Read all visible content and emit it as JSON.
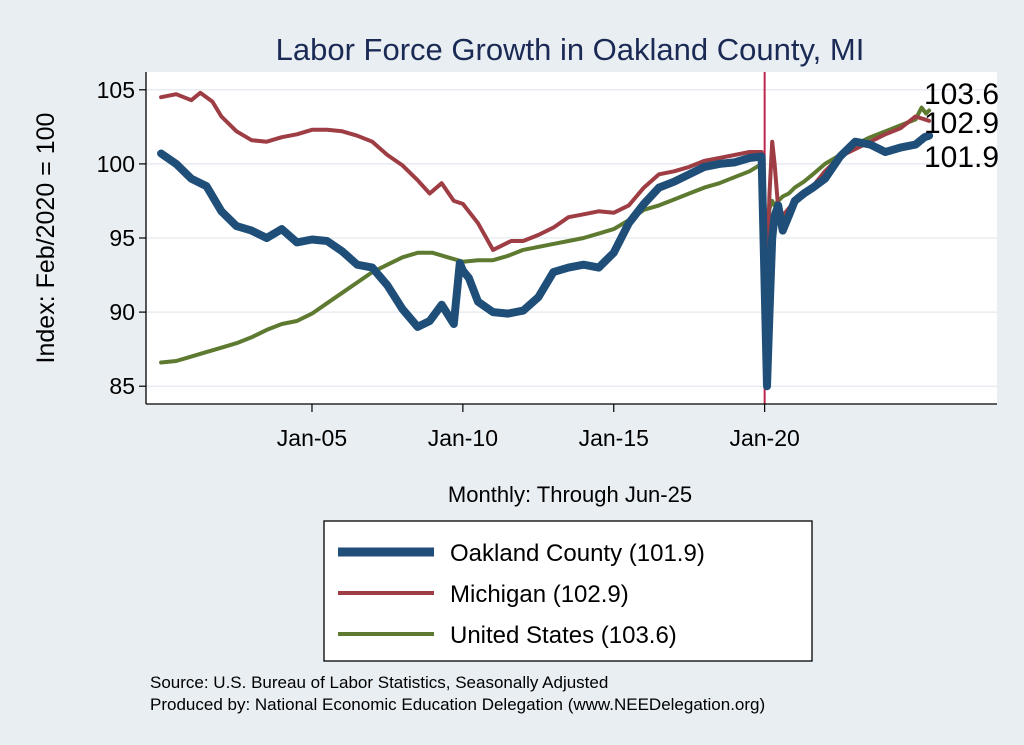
{
  "chart_data": {
    "type": "line",
    "title": "Labor Force Growth in Oakland  County, MI",
    "ylabel": "Index: Feb/2020 = 100",
    "xlabel": "Monthly: Through Jun-25",
    "x_ticks": [
      "Jan-05",
      "Jan-10",
      "Jan-15",
      "Jan-20"
    ],
    "x_tick_values": [
      2005.0,
      2010.0,
      2015.0,
      2020.0
    ],
    "y_ticks": [
      "85",
      "90",
      "95",
      "100",
      "105"
    ],
    "y_tick_values": [
      85,
      90,
      95,
      100,
      105
    ],
    "xlim": [
      1999.5,
      2027.7
    ],
    "ylim": [
      83.8,
      106.2
    ],
    "vline_x": 2020.0,
    "end_labels": [
      "103.6",
      "102.9",
      "101.9"
    ],
    "series": [
      {
        "name": "Oakland County",
        "legend": "Oakland  County (101.9)",
        "color": "#1f4e79",
        "x": [
          2000.0,
          2000.5,
          2001.0,
          2001.5,
          2002.0,
          2002.5,
          2003.0,
          2003.5,
          2004.0,
          2004.5,
          2005.0,
          2005.5,
          2006.0,
          2006.5,
          2007.0,
          2007.5,
          2008.0,
          2008.5,
          2008.9,
          2009.3,
          2009.7,
          2009.9,
          2010.0,
          2010.2,
          2010.5,
          2011.0,
          2011.5,
          2012.0,
          2012.5,
          2013.0,
          2013.5,
          2014.0,
          2014.5,
          2015.0,
          2015.5,
          2016.0,
          2016.5,
          2017.0,
          2017.5,
          2018.0,
          2018.5,
          2019.0,
          2019.5,
          2019.9,
          2020.08,
          2020.16,
          2020.25,
          2020.33,
          2020.45,
          2020.6,
          2020.8,
          2021.0,
          2021.3,
          2021.6,
          2022.0,
          2022.5,
          2023.0,
          2023.5,
          2024.0,
          2024.5,
          2025.0,
          2025.3,
          2025.45
        ],
        "y": [
          100.7,
          100.0,
          99.0,
          98.5,
          96.8,
          95.8,
          95.5,
          95.0,
          95.6,
          94.7,
          94.9,
          94.8,
          94.1,
          93.2,
          93.0,
          91.8,
          90.2,
          89.0,
          89.4,
          90.5,
          89.2,
          93.3,
          92.8,
          92.3,
          90.7,
          90.0,
          89.9,
          90.1,
          91.0,
          92.7,
          93.0,
          93.2,
          93.0,
          94.0,
          96.0,
          97.3,
          98.4,
          98.8,
          99.3,
          99.8,
          100.0,
          100.1,
          100.4,
          100.5,
          85.0,
          90.0,
          95.0,
          96.5,
          97.2,
          95.5,
          96.5,
          97.5,
          98.0,
          98.4,
          99.0,
          100.5,
          101.5,
          101.3,
          100.8,
          101.1,
          101.3,
          101.8,
          101.9
        ]
      },
      {
        "name": "Michigan",
        "legend": "Michigan (102.9)",
        "color": "#9e3d44",
        "x": [
          2000.0,
          2000.5,
          2001.0,
          2001.3,
          2001.7,
          2002.0,
          2002.5,
          2003.0,
          2003.5,
          2004.0,
          2004.5,
          2005.0,
          2005.5,
          2006.0,
          2006.5,
          2007.0,
          2007.5,
          2008.0,
          2008.5,
          2008.9,
          2009.3,
          2009.7,
          2010.0,
          2010.5,
          2011.0,
          2011.2,
          2011.6,
          2012.0,
          2012.5,
          2013.0,
          2013.5,
          2014.0,
          2014.5,
          2015.0,
          2015.5,
          2016.0,
          2016.5,
          2017.0,
          2017.5,
          2018.0,
          2018.5,
          2019.0,
          2019.5,
          2019.9,
          2020.08,
          2020.16,
          2020.25,
          2020.33,
          2020.45,
          2020.6,
          2020.8,
          2021.0,
          2021.3,
          2021.6,
          2022.0,
          2022.5,
          2023.0,
          2023.5,
          2024.0,
          2024.5,
          2025.0,
          2025.3,
          2025.45
        ],
        "y": [
          104.5,
          104.7,
          104.3,
          104.8,
          104.2,
          103.2,
          102.2,
          101.6,
          101.5,
          101.8,
          102.0,
          102.3,
          102.3,
          102.2,
          101.9,
          101.5,
          100.6,
          99.9,
          98.9,
          98.0,
          98.7,
          97.5,
          97.3,
          96.0,
          94.2,
          94.4,
          94.8,
          94.8,
          95.2,
          95.7,
          96.4,
          96.6,
          96.8,
          96.7,
          97.2,
          98.4,
          99.3,
          99.5,
          99.8,
          100.2,
          100.4,
          100.6,
          100.8,
          100.8,
          92.5,
          98.0,
          101.5,
          100.0,
          97.0,
          96.5,
          97.0,
          97.5,
          98.0,
          98.5,
          99.5,
          100.5,
          101.0,
          101.5,
          102.0,
          102.4,
          103.2,
          103.0,
          102.9
        ]
      },
      {
        "name": "United States",
        "legend": "United States (103.6)",
        "color": "#5e7a30",
        "x": [
          2000.0,
          2000.5,
          2001.0,
          2001.5,
          2002.0,
          2002.5,
          2003.0,
          2003.5,
          2004.0,
          2004.5,
          2005.0,
          2005.5,
          2006.0,
          2006.5,
          2007.0,
          2007.5,
          2008.0,
          2008.5,
          2009.0,
          2009.5,
          2010.0,
          2010.5,
          2011.0,
          2011.5,
          2012.0,
          2012.5,
          2013.0,
          2013.5,
          2014.0,
          2014.5,
          2015.0,
          2015.5,
          2016.0,
          2016.5,
          2017.0,
          2017.5,
          2018.0,
          2018.5,
          2019.0,
          2019.5,
          2019.9,
          2020.08,
          2020.16,
          2020.25,
          2020.33,
          2020.45,
          2020.6,
          2020.8,
          2021.0,
          2021.3,
          2021.6,
          2022.0,
          2022.5,
          2023.0,
          2023.5,
          2024.0,
          2024.5,
          2025.0,
          2025.2,
          2025.35,
          2025.45
        ],
        "y": [
          86.6,
          86.7,
          87.0,
          87.3,
          87.6,
          87.9,
          88.3,
          88.8,
          89.2,
          89.4,
          89.9,
          90.6,
          91.3,
          92.0,
          92.7,
          93.2,
          93.7,
          94.0,
          94.0,
          93.7,
          93.4,
          93.5,
          93.5,
          93.8,
          94.2,
          94.4,
          94.6,
          94.8,
          95.0,
          95.3,
          95.6,
          96.2,
          96.9,
          97.2,
          97.6,
          98.0,
          98.4,
          98.7,
          99.1,
          99.5,
          100.0,
          95.0,
          97.0,
          97.5,
          97.2,
          97.5,
          97.8,
          98.0,
          98.4,
          98.8,
          99.3,
          100.0,
          100.6,
          101.3,
          101.8,
          102.2,
          102.6,
          103.0,
          103.8,
          103.4,
          103.6
        ]
      }
    ]
  },
  "source_note": "Source: U.S. Bureau of Labor Statistics, Seasonally Adjusted",
  "producer_note": "Produced by: National Economic Education Delegation (www.NEEDelegation.org)"
}
